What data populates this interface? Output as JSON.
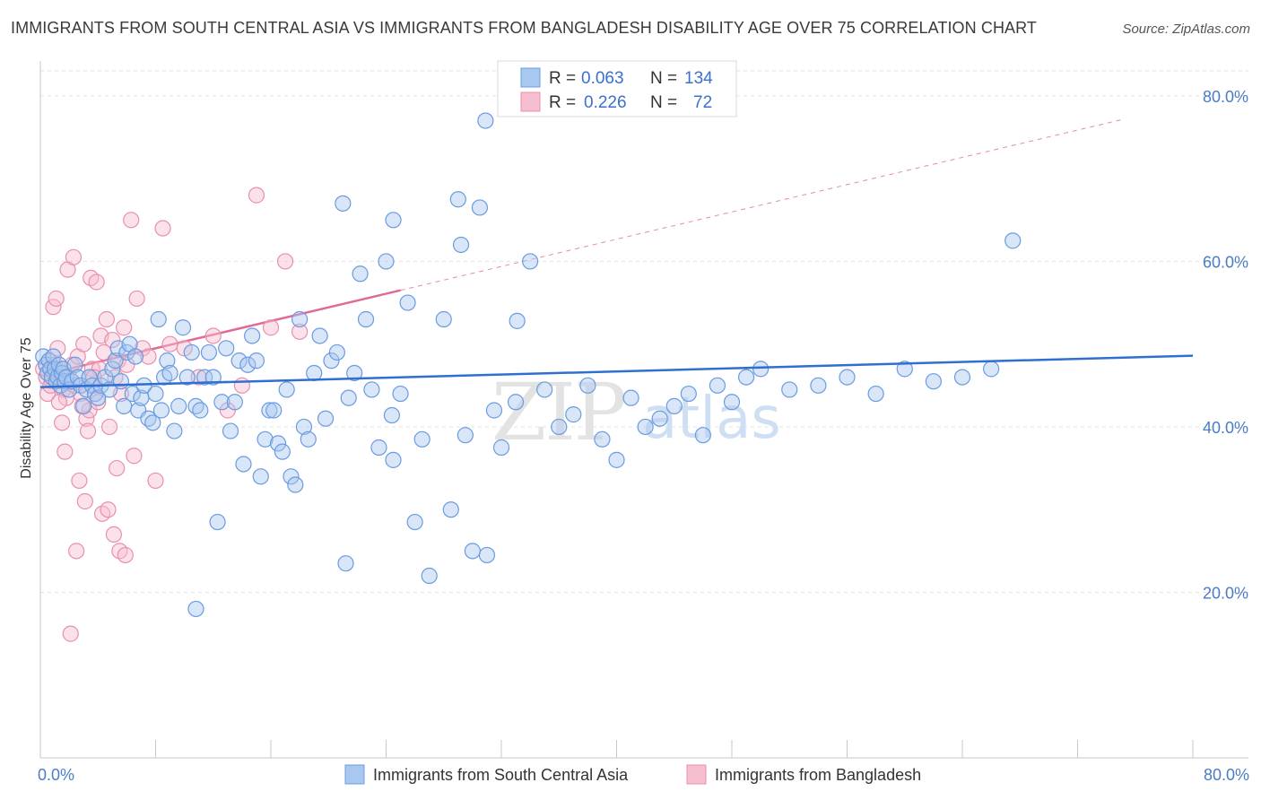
{
  "title": "IMMIGRANTS FROM SOUTH CENTRAL ASIA VS IMMIGRANTS FROM BANGLADESH DISABILITY AGE OVER 75 CORRELATION CHART",
  "source": "Source: ZipAtlas.com",
  "watermark": {
    "zip": "ZIP",
    "atlas": "atlas"
  },
  "colors": {
    "blue_fill": "#a9c8f0",
    "blue_stroke": "#6a9be0",
    "blue_line": "#2f6fd1",
    "pink_fill": "#f6bfd0",
    "pink_stroke": "#e98fad",
    "pink_line": "#e06a96",
    "tick_text": "#4a7cc7",
    "grid": "#e3e3e3"
  },
  "legend": {
    "series1": {
      "r_label": "R =",
      "r_value": "0.063",
      "n_label": "N =",
      "n_value": "134"
    },
    "series2": {
      "r_label": "R =",
      "r_value": "0.226",
      "n_label": "N =",
      "n_value": "72"
    }
  },
  "chart_data": {
    "type": "scatter",
    "title": "IMMIGRANTS FROM SOUTH CENTRAL ASIA VS IMMIGRANTS FROM BANGLADESH DISABILITY AGE OVER 75 CORRELATION CHART",
    "xlabel": "",
    "ylabel": "Disability Age Over 75",
    "xlim": [
      0,
      80
    ],
    "ylim": [
      0,
      84
    ],
    "x_tick_labels": [
      "0.0%",
      "80.0%"
    ],
    "y_ticks": [
      20,
      40,
      60,
      80
    ],
    "y_tick_labels": [
      "20.0%",
      "40.0%",
      "60.0%",
      "80.0%"
    ],
    "grid": true,
    "legend_position": "top-center",
    "series": [
      {
        "name": "Immigrants from South Central Asia",
        "color": "#a9c8f0",
        "trend": {
          "x0": 0,
          "y0": 44.8,
          "x1": 80,
          "y1": 48.6,
          "style": "solid"
        },
        "points": [
          [
            0.2,
            48.5
          ],
          [
            0.4,
            47.5
          ],
          [
            0.5,
            46.5
          ],
          [
            0.6,
            48
          ],
          [
            0.7,
            47
          ],
          [
            0.8,
            46
          ],
          [
            0.9,
            48.5
          ],
          [
            1.0,
            47
          ],
          [
            1.1,
            45.5
          ],
          [
            1.2,
            46
          ],
          [
            1.3,
            47.5
          ],
          [
            1.4,
            45
          ],
          [
            1.5,
            46.5
          ],
          [
            1.6,
            47
          ],
          [
            1.7,
            45.5
          ],
          [
            1.8,
            46
          ],
          [
            2.0,
            44.5
          ],
          [
            2.2,
            45.5
          ],
          [
            2.4,
            47.5
          ],
          [
            2.6,
            46
          ],
          [
            2.8,
            45
          ],
          [
            3.0,
            42.5
          ],
          [
            3.2,
            44.5
          ],
          [
            3.4,
            46
          ],
          [
            3.6,
            45
          ],
          [
            3.8,
            44
          ],
          [
            4.0,
            43.5
          ],
          [
            4.2,
            45
          ],
          [
            4.5,
            46
          ],
          [
            4.8,
            44.5
          ],
          [
            5.0,
            47
          ],
          [
            5.2,
            48
          ],
          [
            5.4,
            49.5
          ],
          [
            5.6,
            45.5
          ],
          [
            5.8,
            42.5
          ],
          [
            6.0,
            49
          ],
          [
            6.2,
            50
          ],
          [
            6.4,
            44
          ],
          [
            6.6,
            48.5
          ],
          [
            6.8,
            42
          ],
          [
            7.0,
            43.5
          ],
          [
            7.2,
            45
          ],
          [
            7.5,
            41
          ],
          [
            7.8,
            40.5
          ],
          [
            8.0,
            44
          ],
          [
            8.2,
            53
          ],
          [
            8.4,
            42
          ],
          [
            8.6,
            46
          ],
          [
            8.8,
            48
          ],
          [
            9.0,
            46.5
          ],
          [
            9.3,
            39.5
          ],
          [
            9.6,
            42.5
          ],
          [
            9.9,
            52
          ],
          [
            10.2,
            46
          ],
          [
            10.5,
            49
          ],
          [
            10.8,
            42.5
          ],
          [
            11.1,
            42
          ],
          [
            11.4,
            46
          ],
          [
            11.7,
            49
          ],
          [
            12.0,
            46
          ],
          [
            12.3,
            28.5
          ],
          [
            12.6,
            43
          ],
          [
            12.9,
            49.5
          ],
          [
            13.2,
            39.5
          ],
          [
            13.5,
            43
          ],
          [
            13.8,
            48
          ],
          [
            14.1,
            35.5
          ],
          [
            14.4,
            47.5
          ],
          [
            14.7,
            51
          ],
          [
            15.0,
            48
          ],
          [
            15.3,
            34
          ],
          [
            15.6,
            38.5
          ],
          [
            15.9,
            42
          ],
          [
            16.2,
            42
          ],
          [
            16.5,
            38
          ],
          [
            16.8,
            37
          ],
          [
            17.1,
            44.5
          ],
          [
            17.4,
            34
          ],
          [
            17.7,
            33
          ],
          [
            18.0,
            53
          ],
          [
            18.3,
            40
          ],
          [
            18.6,
            38.5
          ],
          [
            19.0,
            46.5
          ],
          [
            19.4,
            51
          ],
          [
            19.8,
            41
          ],
          [
            20.2,
            48
          ],
          [
            20.6,
            49
          ],
          [
            21.0,
            67
          ],
          [
            21.4,
            43.5
          ],
          [
            21.8,
            46.5
          ],
          [
            22.2,
            58.5
          ],
          [
            22.6,
            53
          ],
          [
            23.0,
            44.5
          ],
          [
            23.5,
            37.5
          ],
          [
            24.0,
            60
          ],
          [
            24.5,
            36
          ],
          [
            25.0,
            44
          ],
          [
            25.5,
            55
          ],
          [
            26.0,
            28.5
          ],
          [
            26.5,
            38.5
          ],
          [
            27.0,
            22
          ],
          [
            28.0,
            53
          ],
          [
            28.5,
            30
          ],
          [
            29.0,
            67.5
          ],
          [
            29.5,
            39
          ],
          [
            30.0,
            25
          ],
          [
            30.5,
            66.5
          ],
          [
            31.0,
            24.5
          ],
          [
            31.5,
            42
          ],
          [
            32.0,
            37.5
          ],
          [
            33.0,
            43
          ],
          [
            34.0,
            60
          ],
          [
            35.0,
            44.5
          ],
          [
            36.0,
            40
          ],
          [
            37.0,
            41.5
          ],
          [
            38.0,
            45
          ],
          [
            39.0,
            38.5
          ],
          [
            40.0,
            36
          ],
          [
            41.0,
            43.5
          ],
          [
            42.0,
            40
          ],
          [
            43.0,
            41
          ],
          [
            44.0,
            42.5
          ],
          [
            45.0,
            44
          ],
          [
            46.0,
            39
          ],
          [
            47.0,
            45
          ],
          [
            48.0,
            43
          ],
          [
            49.0,
            46
          ],
          [
            50.0,
            47
          ],
          [
            52.0,
            44.5
          ],
          [
            54.0,
            45
          ],
          [
            56.0,
            46
          ],
          [
            58.0,
            44
          ],
          [
            60.0,
            47
          ],
          [
            62.0,
            45.5
          ],
          [
            64.0,
            46
          ],
          [
            66.0,
            47
          ],
          [
            67.5,
            62.5
          ],
          [
            10.8,
            18
          ],
          [
            30.9,
            77
          ],
          [
            21.2,
            23.5
          ],
          [
            24.5,
            65
          ],
          [
            29.2,
            62
          ],
          [
            33.1,
            52.8
          ],
          [
            24.4,
            41.4
          ]
        ]
      },
      {
        "name": "Immigrants from Bangladesh",
        "color": "#f6bfd0",
        "trend": {
          "x0": 0,
          "y0": 46.2,
          "x1": 25,
          "y1": 56.5,
          "style": "solid",
          "dashed_extension_to": [
            75,
            80
          ]
        },
        "points": [
          [
            0.2,
            47
          ],
          [
            0.4,
            46
          ],
          [
            0.6,
            48
          ],
          [
            0.8,
            45.5
          ],
          [
            1.0,
            47.5
          ],
          [
            1.2,
            49.5
          ],
          [
            1.4,
            46.5
          ],
          [
            1.6,
            44.5
          ],
          [
            1.8,
            43.5
          ],
          [
            2.0,
            46
          ],
          [
            2.2,
            47.5
          ],
          [
            2.4,
            45
          ],
          [
            2.6,
            48.5
          ],
          [
            2.8,
            44
          ],
          [
            3.0,
            50
          ],
          [
            3.2,
            41
          ],
          [
            3.4,
            42
          ],
          [
            3.6,
            47
          ],
          [
            3.8,
            45
          ],
          [
            4.0,
            43
          ],
          [
            4.2,
            51
          ],
          [
            4.4,
            49
          ],
          [
            4.6,
            53
          ],
          [
            4.8,
            40
          ],
          [
            5.0,
            50.5
          ],
          [
            5.2,
            46
          ],
          [
            5.4,
            48
          ],
          [
            5.6,
            44
          ],
          [
            5.8,
            52
          ],
          [
            6.0,
            47.5
          ],
          [
            0.9,
            54.5
          ],
          [
            1.1,
            55.5
          ],
          [
            1.5,
            40.5
          ],
          [
            1.9,
            59
          ],
          [
            2.3,
            60.5
          ],
          [
            2.7,
            33.5
          ],
          [
            3.1,
            31
          ],
          [
            3.5,
            58
          ],
          [
            3.9,
            57.5
          ],
          [
            4.3,
            29.5
          ],
          [
            4.7,
            30
          ],
          [
            5.1,
            27
          ],
          [
            5.5,
            25
          ],
          [
            5.9,
            24.5
          ],
          [
            6.3,
            65
          ],
          [
            6.7,
            55.5
          ],
          [
            7.1,
            49.5
          ],
          [
            7.5,
            48.5
          ],
          [
            8.0,
            33.5
          ],
          [
            8.5,
            64
          ],
          [
            9.0,
            50
          ],
          [
            10.0,
            49.5
          ],
          [
            11.0,
            46
          ],
          [
            12.0,
            51
          ],
          [
            13.0,
            42
          ],
          [
            14.0,
            45
          ],
          [
            15.0,
            68
          ],
          [
            16.0,
            52
          ],
          [
            17.0,
            60
          ],
          [
            18.0,
            51.5
          ],
          [
            2.1,
            15
          ],
          [
            2.5,
            25
          ],
          [
            1.7,
            37
          ],
          [
            3.3,
            39.5
          ],
          [
            0.5,
            44
          ],
          [
            0.7,
            45
          ],
          [
            1.3,
            43
          ],
          [
            2.9,
            42.5
          ],
          [
            6.5,
            36.5
          ],
          [
            5.3,
            35
          ],
          [
            4.1,
            47
          ],
          [
            3.7,
            46
          ]
        ]
      }
    ]
  },
  "bottom_legend": {
    "series1": "Immigrants from South Central Asia",
    "series2": "Immigrants from Bangladesh"
  }
}
